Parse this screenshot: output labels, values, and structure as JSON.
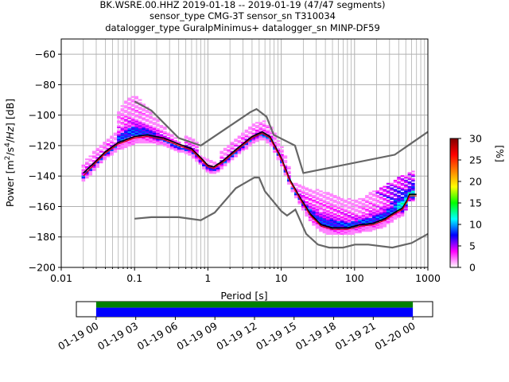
{
  "figure": {
    "title_lines": [
      "BK.WSRE.00.HHZ   2019-01-18 -- 2019-01-19  (47/47 segments)",
      "sensor_type CMG-3T sensor_sn T310034",
      "datalogger_type GuralpMinimus+ datalogger_sn MINP-DF59"
    ]
  },
  "chart_data": [
    {
      "type": "heatmap",
      "title": "BK.WSRE.00.HHZ   2019-01-18 -- 2019-01-19  (47/47 segments)",
      "xlabel": "Period [s]",
      "ylabel": "Power [m²/s⁴/Hz] [dB]",
      "xscale": "log",
      "xlim": [
        0.01,
        1000
      ],
      "ylim": [
        -200,
        -50
      ],
      "grid": true,
      "x_ticks": [
        {
          "value": 0.01,
          "label": "0.01"
        },
        {
          "value": 0.1,
          "label": "0.1"
        },
        {
          "value": 1,
          "label": "1"
        },
        {
          "value": 10,
          "label": "10"
        },
        {
          "value": 100,
          "label": "100"
        },
        {
          "value": 1000,
          "label": "1000"
        }
      ],
      "y_ticks": [
        {
          "value": -60,
          "label": "−60"
        },
        {
          "value": -80,
          "label": "−80"
        },
        {
          "value": -100,
          "label": "−100"
        },
        {
          "value": -120,
          "label": "−120"
        },
        {
          "value": -140,
          "label": "−140"
        },
        {
          "value": -160,
          "label": "−160"
        },
        {
          "value": -180,
          "label": "−180"
        },
        {
          "value": -200,
          "label": "−200"
        }
      ],
      "colorbar": {
        "label": "[%]",
        "range": [
          0,
          30
        ],
        "ticks": [
          {
            "value": 0,
            "label": "0"
          },
          {
            "value": 5,
            "label": "5"
          },
          {
            "value": 10,
            "label": "10"
          },
          {
            "value": 15,
            "label": "15"
          },
          {
            "value": 20,
            "label": "20"
          },
          {
            "value": 25,
            "label": "25"
          },
          {
            "value": 30,
            "label": "30"
          }
        ],
        "colors": [
          "#ffffff",
          "#ff00ff",
          "#0000ff",
          "#00ffff",
          "#00ff00",
          "#ffff00",
          "#ff8000",
          "#ff0000",
          "#800000"
        ]
      },
      "series": [
        {
          "role": "noise-model-high",
          "color": "#666666",
          "points": [
            [
              0.1,
              -91
            ],
            [
              0.17,
              -97
            ],
            [
              0.4,
              -115
            ],
            [
              0.8,
              -120
            ],
            [
              3.8,
              -98
            ],
            [
              4.6,
              -96
            ],
            [
              6.3,
              -101
            ],
            [
              7.9,
              -113
            ],
            [
              15.4,
              -120
            ],
            [
              20,
              -138
            ],
            [
              354,
              -126
            ],
            [
              1000,
              -111
            ]
          ]
        },
        {
          "role": "noise-model-low",
          "color": "#666666",
          "points": [
            [
              0.1,
              -168
            ],
            [
              0.17,
              -167
            ],
            [
              0.4,
              -167
            ],
            [
              0.8,
              -169
            ],
            [
              1.24,
              -164
            ],
            [
              2.4,
              -148
            ],
            [
              4.3,
              -141
            ],
            [
              5,
              -141
            ],
            [
              6,
              -150
            ],
            [
              10,
              -163
            ],
            [
              12,
              -166
            ],
            [
              15.6,
              -162
            ],
            [
              21.9,
              -178
            ],
            [
              31.6,
              -185
            ],
            [
              45,
              -187
            ],
            [
              70,
              -187
            ],
            [
              101,
              -185
            ],
            [
              154,
              -185
            ],
            [
              328,
              -187
            ],
            [
              600,
              -184
            ],
            [
              1000,
              -178
            ]
          ]
        },
        {
          "role": "mean",
          "color": "#000000",
          "points": [
            [
              0.02,
              -138
            ],
            [
              0.03,
              -130
            ],
            [
              0.04,
              -124
            ],
            [
              0.06,
              -118
            ],
            [
              0.1,
              -114
            ],
            [
              0.15,
              -113
            ],
            [
              0.25,
              -115
            ],
            [
              0.4,
              -119
            ],
            [
              0.6,
              -122
            ],
            [
              0.8,
              -128
            ],
            [
              1.0,
              -133
            ],
            [
              1.2,
              -134
            ],
            [
              1.6,
              -130
            ],
            [
              2.5,
              -122
            ],
            [
              4.0,
              -114
            ],
            [
              5.5,
              -111
            ],
            [
              7,
              -114
            ],
            [
              10,
              -128
            ],
            [
              13,
              -142
            ],
            [
              18,
              -154
            ],
            [
              25,
              -165
            ],
            [
              35,
              -172
            ],
            [
              50,
              -174
            ],
            [
              80,
              -174
            ],
            [
              120,
              -172
            ],
            [
              180,
              -171
            ],
            [
              260,
              -168
            ],
            [
              350,
              -164
            ],
            [
              450,
              -161
            ],
            [
              520,
              -156
            ],
            [
              560,
              -152
            ],
            [
              700,
              -152
            ]
          ]
        },
        {
          "role": "mode",
          "color": "#dd0000",
          "points": [
            [
              0.02,
              -140
            ],
            [
              0.03,
              -131
            ],
            [
              0.04,
              -125
            ],
            [
              0.06,
              -119
            ],
            [
              0.1,
              -115
            ],
            [
              0.15,
              -114
            ],
            [
              0.25,
              -116
            ],
            [
              0.4,
              -120
            ],
            [
              0.6,
              -123
            ],
            [
              0.8,
              -129
            ],
            [
              1.0,
              -134
            ],
            [
              1.2,
              -135
            ],
            [
              1.6,
              -131
            ],
            [
              2.5,
              -123
            ],
            [
              4.0,
              -115
            ],
            [
              5.5,
              -112
            ],
            [
              7,
              -115
            ],
            [
              10,
              -129
            ],
            [
              13,
              -143
            ],
            [
              18,
              -155
            ],
            [
              25,
              -166
            ],
            [
              35,
              -173
            ],
            [
              50,
              -175
            ],
            [
              80,
              -175
            ],
            [
              120,
              -173
            ],
            [
              180,
              -172
            ],
            [
              260,
              -169
            ],
            [
              350,
              -165
            ],
            [
              450,
              -162
            ],
            [
              520,
              -157
            ],
            [
              560,
              -153
            ],
            [
              700,
              -153
            ]
          ]
        },
        {
          "role": "scatter-high",
          "color": "#cc00cc",
          "points": [
            [
              0.06,
              -98
            ],
            [
              0.08,
              -90
            ],
            [
              0.1,
              -88
            ],
            [
              0.13,
              -92
            ],
            [
              0.17,
              -99
            ],
            [
              0.25,
              -108
            ],
            [
              0.4,
              -118
            ],
            [
              0.6,
              -126
            ],
            [
              100,
              -157
            ],
            [
              200,
              -150
            ],
            [
              400,
              -142
            ],
            [
              700,
              -137
            ]
          ]
        }
      ]
    },
    {
      "type": "timeline",
      "xlim": [
        "2019-01-18 22:30",
        "2019-01-20 01:30"
      ],
      "coverage": [
        [
          "2019-01-19 00:00",
          "2019-01-20 00:00"
        ]
      ],
      "x_ticks": [
        "01-19 00",
        "01-19 03",
        "01-19 06",
        "01-19 09",
        "01-19 12",
        "01-19 15",
        "01-19 18",
        "01-19 21",
        "01-20 00"
      ],
      "colors": {
        "top": "#008000",
        "bottom": "#0000ff"
      }
    }
  ]
}
